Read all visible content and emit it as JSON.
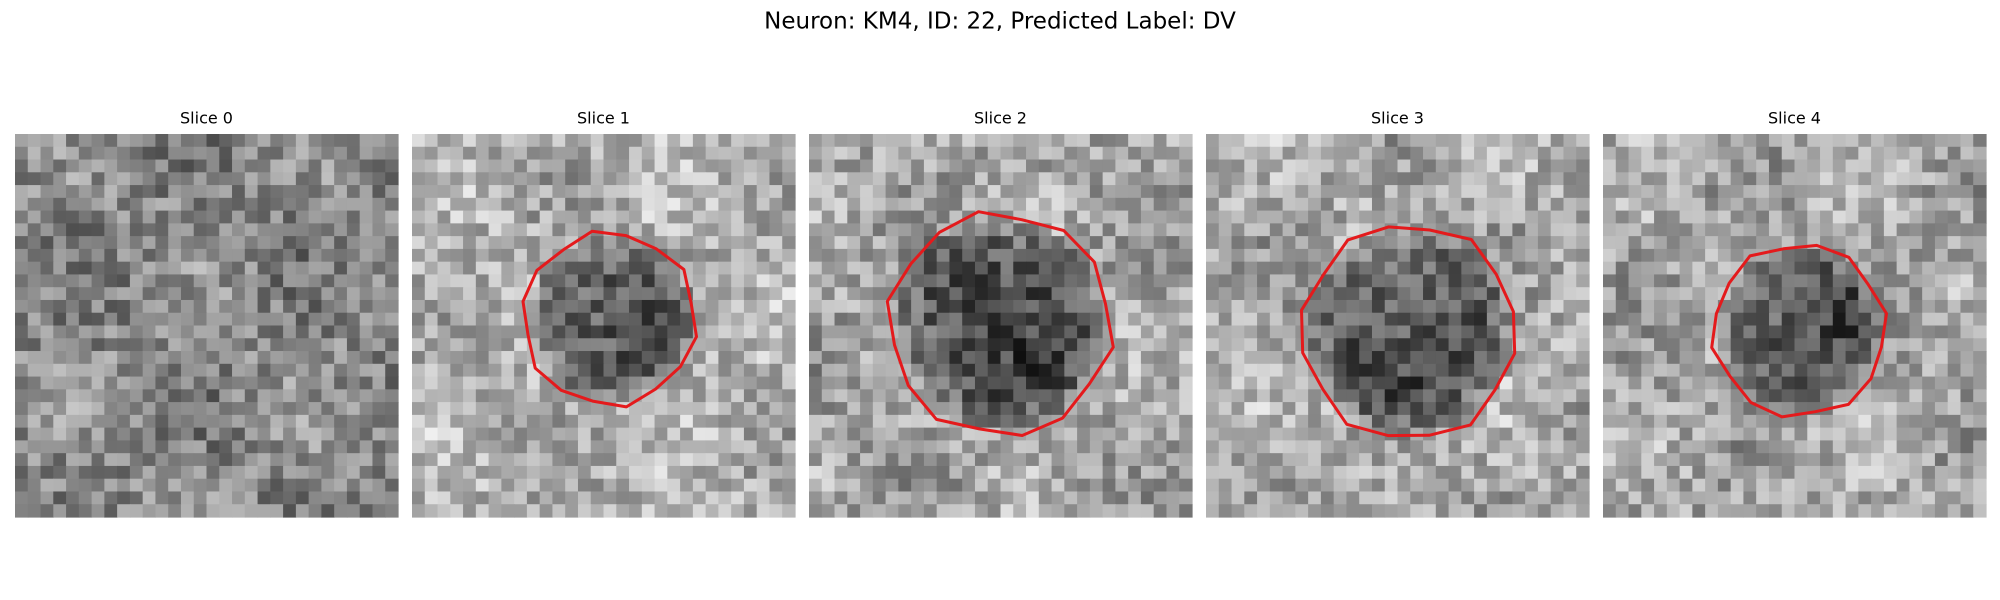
{
  "figure": {
    "title": "Neuron: KM4, ID: 22, Predicted Label: DV",
    "panels": [
      "Slice 0",
      "Slice 1",
      "Slice 2",
      "Slice 3",
      "Slice 4"
    ]
  }
}
